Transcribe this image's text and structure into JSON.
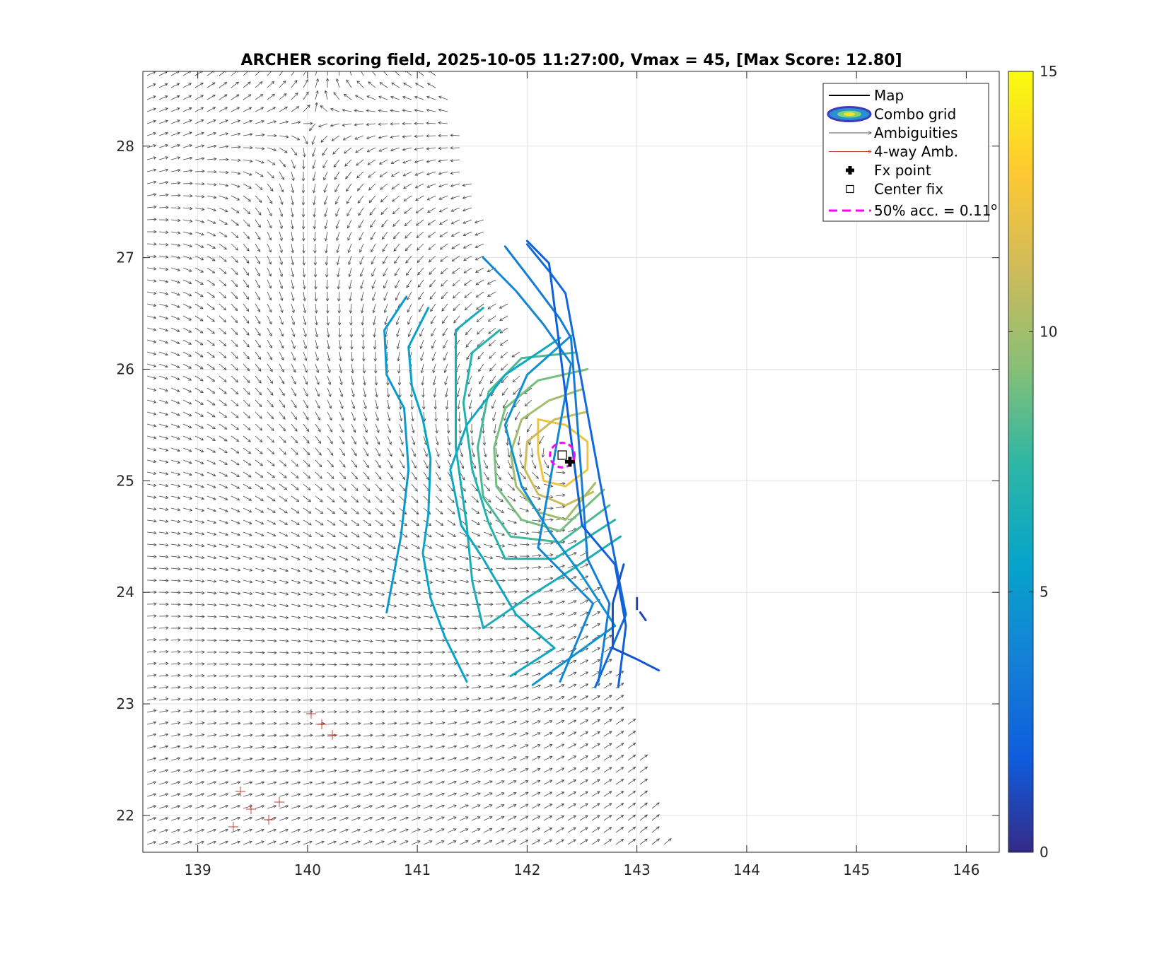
{
  "chart_data": {
    "type": "contour",
    "title": "ARCHER scoring field, 2025-10-05 11:27:00, Vmax = 45, [Max Score: 12.80]",
    "xlim": [
      138.5,
      146.3
    ],
    "ylim": [
      21.67,
      28.67
    ],
    "xticks": [
      139,
      140,
      141,
      142,
      143,
      144,
      145,
      146
    ],
    "yticks": [
      22,
      23,
      24,
      25,
      26,
      27,
      28
    ],
    "grid": true,
    "colorbar": {
      "min": 0,
      "max": 15,
      "ticks": [
        0,
        5,
        10,
        15
      ],
      "colormap": "parula"
    },
    "legend": {
      "placement": "top-right",
      "entries": [
        {
          "label": "Map",
          "marker": "line",
          "color": "#000000"
        },
        {
          "label": "Combo grid",
          "marker": "ellipse",
          "color": "#3b3bbf"
        },
        {
          "label": "Ambiguities",
          "marker": "arrow",
          "color": "#555555"
        },
        {
          "label": "4-way Amb.",
          "marker": "arrow",
          "color": "#c0392b"
        },
        {
          "label": "Fx point",
          "marker": "plus",
          "color": "#000000"
        },
        {
          "label": "Center fix",
          "marker": "square",
          "color": "#000000"
        },
        {
          "label": "50% acc. = 0.11",
          "suffix": "o",
          "marker": "dashed",
          "color": "#ff00ff"
        }
      ]
    },
    "center": {
      "lon": 142.32,
      "lat": 25.23
    },
    "fx_point": {
      "lon": 142.39,
      "lat": 25.17
    },
    "accuracy_radius_deg": 0.11,
    "swath_edge": [
      [
        141.25,
        28.67
      ],
      [
        143.3,
        21.67
      ]
    ],
    "contours": [
      {
        "level": 12.5,
        "points": [
          [
            142.1,
            25.55
          ],
          [
            142.35,
            25.5
          ],
          [
            142.55,
            25.35
          ],
          [
            142.55,
            25.1
          ],
          [
            142.35,
            24.95
          ],
          [
            142.15,
            25.0
          ],
          [
            142.1,
            25.25
          ],
          [
            142.1,
            25.55
          ]
        ]
      },
      {
        "level": 11,
        "points": [
          [
            142.55,
            25.62
          ],
          [
            142.25,
            25.55
          ],
          [
            142.0,
            25.35
          ],
          [
            141.98,
            25.1
          ],
          [
            142.1,
            24.88
          ],
          [
            142.35,
            24.78
          ],
          [
            142.6,
            24.9
          ]
        ]
      },
      {
        "level": 10,
        "points": [
          [
            142.5,
            25.82
          ],
          [
            142.2,
            25.72
          ],
          [
            141.95,
            25.55
          ],
          [
            141.85,
            25.25
          ],
          [
            141.9,
            24.95
          ],
          [
            142.1,
            24.72
          ],
          [
            142.35,
            24.65
          ],
          [
            142.62,
            24.98
          ]
        ]
      },
      {
        "level": 9,
        "points": [
          [
            142.55,
            26.0
          ],
          [
            142.1,
            25.9
          ],
          [
            141.8,
            25.65
          ],
          [
            141.7,
            25.3
          ],
          [
            141.72,
            24.95
          ],
          [
            141.95,
            24.65
          ],
          [
            142.3,
            24.55
          ],
          [
            142.7,
            24.92
          ]
        ]
      },
      {
        "level": 8,
        "points": [
          [
            142.45,
            26.15
          ],
          [
            141.95,
            26.1
          ],
          [
            141.65,
            25.8
          ],
          [
            141.55,
            25.3
          ],
          [
            141.6,
            24.85
          ],
          [
            141.85,
            24.5
          ],
          [
            142.3,
            24.45
          ],
          [
            142.75,
            24.78
          ]
        ]
      },
      {
        "level": 7,
        "points": [
          [
            141.75,
            26.35
          ],
          [
            141.5,
            26.15
          ],
          [
            141.42,
            25.7
          ],
          [
            141.5,
            25.1
          ],
          [
            141.65,
            24.62
          ],
          [
            141.8,
            24.3
          ],
          [
            142.25,
            24.3
          ],
          [
            142.8,
            24.65
          ]
        ]
      },
      {
        "level": 6.5,
        "points": [
          [
            141.6,
            26.55
          ],
          [
            141.35,
            26.35
          ],
          [
            141.35,
            25.3
          ],
          [
            141.45,
            24.6
          ],
          [
            141.5,
            24.1
          ],
          [
            141.6,
            23.68
          ],
          [
            142.0,
            23.95
          ],
          [
            142.4,
            24.2
          ],
          [
            142.85,
            24.5
          ]
        ]
      },
      {
        "level": 6,
        "points": [
          [
            142.3,
            26.28
          ],
          [
            141.8,
            25.95
          ],
          [
            141.45,
            25.5
          ],
          [
            141.3,
            25.1
          ],
          [
            141.4,
            24.6
          ],
          [
            141.6,
            24.3
          ],
          [
            141.9,
            23.8
          ],
          [
            142.25,
            23.5
          ],
          [
            141.85,
            23.25
          ]
        ]
      },
      {
        "level": 5.5,
        "points": [
          [
            141.1,
            26.55
          ],
          [
            140.92,
            26.2
          ],
          [
            140.95,
            25.85
          ],
          [
            141.05,
            25.55
          ],
          [
            141.12,
            25.2
          ],
          [
            141.1,
            24.7
          ],
          [
            141.05,
            24.35
          ],
          [
            141.12,
            23.95
          ],
          [
            141.25,
            23.6
          ],
          [
            141.45,
            23.2
          ]
        ]
      },
      {
        "level": 5,
        "points": [
          [
            140.9,
            26.65
          ],
          [
            140.7,
            26.35
          ],
          [
            140.72,
            25.95
          ],
          [
            140.88,
            25.65
          ],
          [
            140.92,
            25.1
          ],
          [
            140.85,
            24.5
          ],
          [
            140.72,
            23.82
          ]
        ]
      },
      {
        "level": 4.5,
        "points": [
          [
            142.4,
            26.3
          ],
          [
            142.0,
            25.95
          ],
          [
            141.8,
            25.5
          ],
          [
            141.95,
            24.95
          ],
          [
            142.2,
            24.55
          ],
          [
            142.5,
            24.15
          ],
          [
            142.8,
            23.7
          ],
          [
            142.05,
            23.17
          ]
        ]
      },
      {
        "level": 4,
        "points": [
          [
            141.6,
            27.0
          ],
          [
            141.9,
            26.7
          ],
          [
            142.15,
            26.4
          ],
          [
            142.4,
            26.05
          ],
          [
            142.1,
            24.4
          ],
          [
            142.6,
            23.9
          ],
          [
            142.3,
            23.2
          ]
        ]
      },
      {
        "level": 3.5,
        "points": [
          [
            141.8,
            27.1
          ],
          [
            142.05,
            26.78
          ],
          [
            142.3,
            26.45
          ],
          [
            142.4,
            26.28
          ],
          [
            142.55,
            24.3
          ],
          [
            142.75,
            23.9
          ],
          [
            142.65,
            23.2
          ]
        ]
      },
      {
        "level": 2.5,
        "points": [
          [
            142.0,
            27.12
          ],
          [
            142.2,
            26.88
          ],
          [
            142.35,
            26.68
          ],
          [
            142.7,
            24.8
          ],
          [
            142.8,
            24.3
          ],
          [
            142.9,
            23.8
          ],
          [
            142.62,
            23.15
          ]
        ]
      },
      {
        "level": 2,
        "points": [
          [
            142.0,
            27.15
          ],
          [
            142.2,
            26.95
          ],
          [
            142.5,
            24.6
          ],
          [
            142.8,
            24.25
          ],
          [
            142.9,
            23.7
          ],
          [
            142.83,
            23.15
          ]
        ]
      },
      {
        "level": 1.5,
        "points": [
          [
            142.88,
            24.25
          ],
          [
            142.78,
            23.9
          ],
          [
            142.78,
            23.5
          ],
          [
            143.0,
            23.4
          ],
          [
            143.2,
            23.3
          ]
        ]
      },
      {
        "level": 1,
        "points": [
          [
            143.0,
            23.95
          ],
          [
            143.0,
            23.85
          ]
        ]
      },
      {
        "level": 1,
        "points": [
          [
            143.03,
            23.82
          ],
          [
            143.08,
            23.75
          ]
        ]
      }
    ]
  }
}
